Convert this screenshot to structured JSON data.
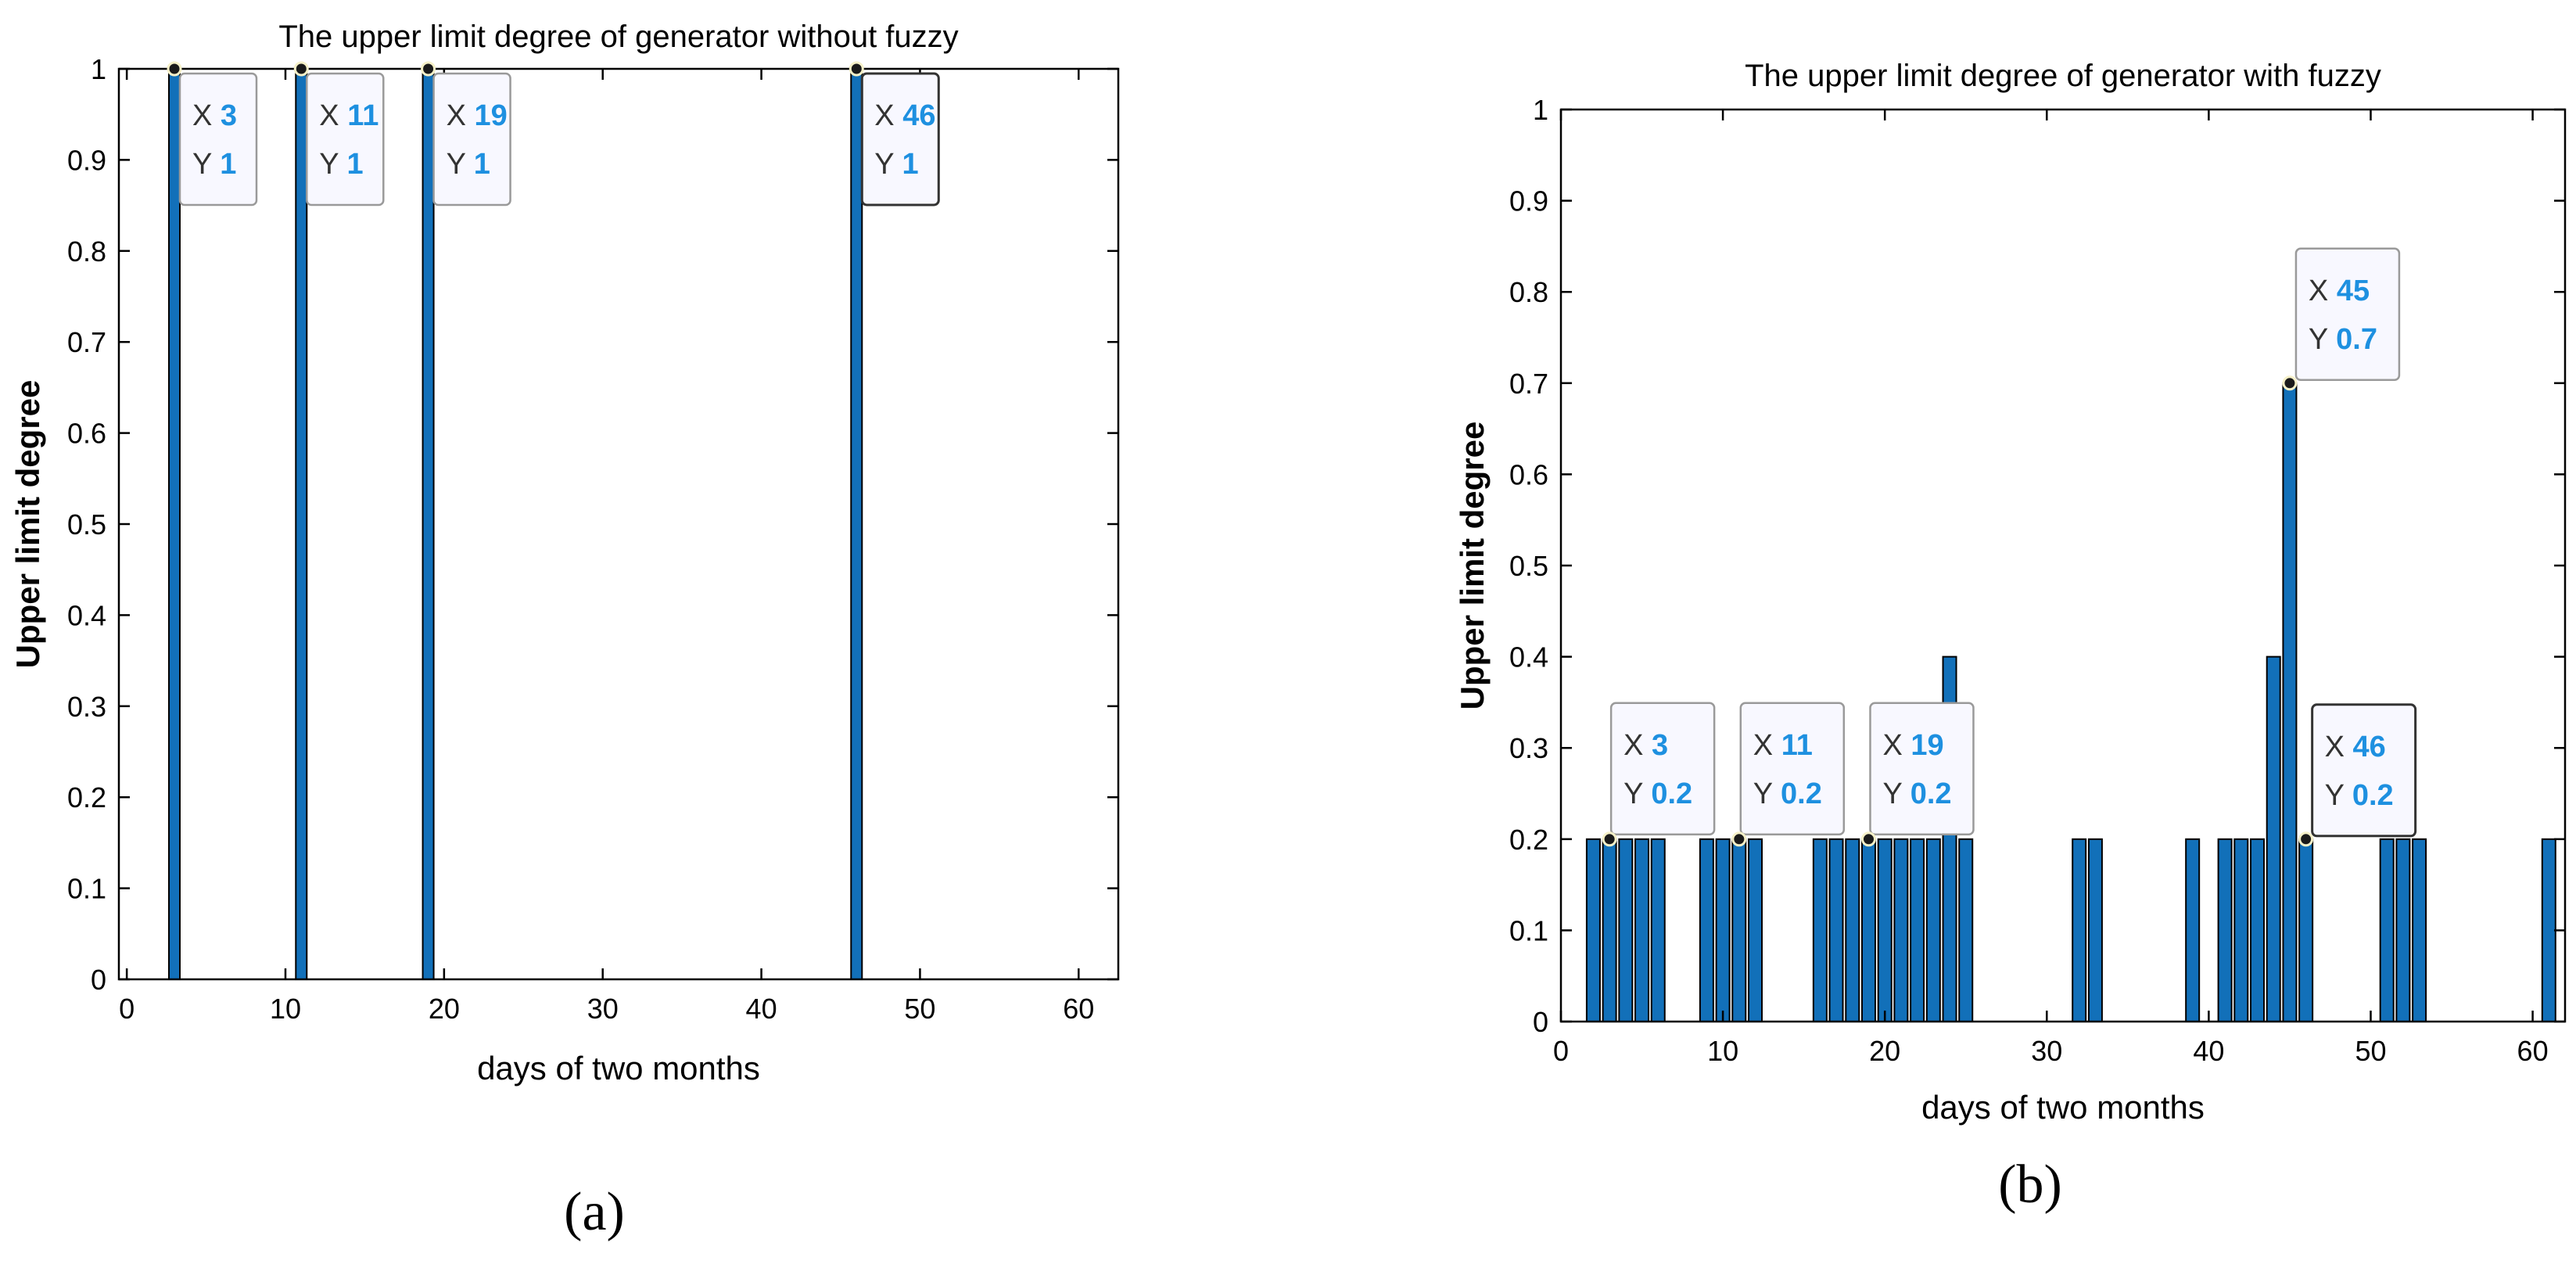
{
  "colors": {
    "bar": "#1270B9",
    "accent_value": "#1E90E0",
    "axis": "#000000",
    "tip_border": "#9A9A9A",
    "tip_border_selected": "#333333",
    "tip_bg": "#F8F8FF"
  },
  "panels": [
    {
      "label": "(a)"
    },
    {
      "label": "(b)"
    }
  ],
  "chart_data": [
    {
      "type": "bar",
      "title": "The upper limit degree of generator without fuzzy",
      "xlabel": "days of two months",
      "ylabel": "Upper limit degree",
      "xlim": [
        -0.5,
        62.5
      ],
      "ylim": [
        0,
        1
      ],
      "xticks": [
        "0",
        "10",
        "20",
        "30",
        "40",
        "50",
        "60"
      ],
      "yticks": [
        "0",
        "0.1",
        "0.2",
        "0.3",
        "0.4",
        "0.5",
        "0.6",
        "0.7",
        "0.8",
        "0.9",
        "1"
      ],
      "grid": false,
      "x": [
        3,
        11,
        19,
        46
      ],
      "values": [
        1,
        1,
        1,
        1
      ],
      "datatips": [
        {
          "x": 3,
          "y": 1,
          "x_label": "X",
          "y_label": "Y",
          "x_text": "3",
          "y_text": "1"
        },
        {
          "x": 11,
          "y": 1,
          "x_label": "X",
          "y_label": "Y",
          "x_text": "11",
          "y_text": "1"
        },
        {
          "x": 19,
          "y": 1,
          "x_label": "X",
          "y_label": "Y",
          "x_text": "19",
          "y_text": "1"
        },
        {
          "x": 46,
          "y": 1,
          "x_label": "X",
          "y_label": "Y",
          "x_text": "46",
          "y_text": "1",
          "selected": true
        }
      ]
    },
    {
      "type": "bar",
      "title": "The upper limit degree of generator with fuzzy",
      "xlabel": "days of two months",
      "ylabel": "Upper limit degree",
      "xlim": [
        0,
        62
      ],
      "ylim": [
        0,
        1
      ],
      "xticks": [
        "0",
        "10",
        "20",
        "30",
        "40",
        "50",
        "60"
      ],
      "yticks": [
        "0",
        "0.1",
        "0.2",
        "0.3",
        "0.4",
        "0.5",
        "0.6",
        "0.7",
        "0.8",
        "0.9",
        "1"
      ],
      "grid": false,
      "x": [
        2,
        3,
        4,
        5,
        6,
        9,
        10,
        11,
        12,
        16,
        17,
        18,
        19,
        20,
        21,
        22,
        23,
        24,
        25,
        32,
        33,
        39,
        41,
        42,
        43,
        44,
        45,
        46,
        51,
        52,
        53,
        61
      ],
      "values": [
        0.2,
        0.2,
        0.2,
        0.2,
        0.2,
        0.2,
        0.2,
        0.2,
        0.2,
        0.2,
        0.2,
        0.2,
        0.2,
        0.2,
        0.2,
        0.2,
        0.2,
        0.4,
        0.2,
        0.2,
        0.2,
        0.2,
        0.2,
        0.2,
        0.2,
        0.4,
        0.7,
        0.2,
        0.2,
        0.2,
        0.2,
        0.2
      ],
      "datatips": [
        {
          "x": 3,
          "y": 0.2,
          "x_label": "X",
          "y_label": "Y",
          "x_text": "3",
          "y_text": "0.2"
        },
        {
          "x": 11,
          "y": 0.2,
          "x_label": "X",
          "y_label": "Y",
          "x_text": "11",
          "y_text": "0.2"
        },
        {
          "x": 19,
          "y": 0.2,
          "x_label": "X",
          "y_label": "Y",
          "x_text": "19",
          "y_text": "0.2"
        },
        {
          "x": 45,
          "y": 0.7,
          "x_label": "X",
          "y_label": "Y",
          "x_text": "45",
          "y_text": "0.7"
        },
        {
          "x": 46,
          "y": 0.2,
          "x_label": "X",
          "y_label": "Y",
          "x_text": "46",
          "y_text": "0.2",
          "selected": true
        }
      ]
    }
  ]
}
